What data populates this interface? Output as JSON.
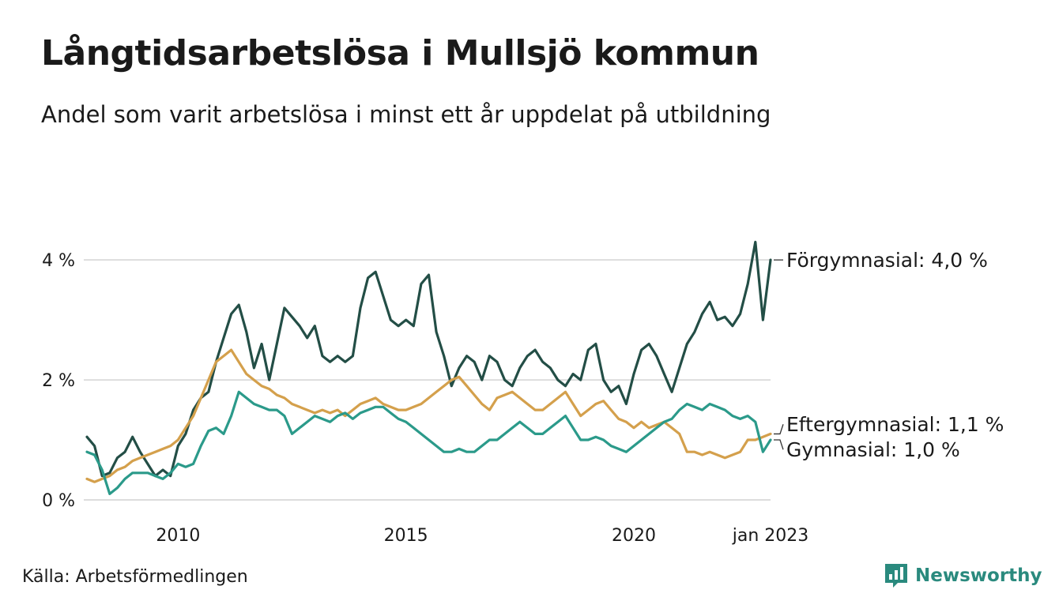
{
  "header": {
    "title": "Långtidsarbetslösa i Mullsjö kommun",
    "subtitle": "Andel som varit arbetslösa i minst ett år uppdelat på utbildning"
  },
  "footer": {
    "source": "Källa: Arbetsförmedlingen",
    "brand": "Newsworthy",
    "brand_color": "#2a8a7e"
  },
  "chart_data": {
    "type": "line",
    "x_start": "2008-01",
    "x_end": "2023-01",
    "x_ticks": [
      {
        "date": "2010-01",
        "label": "2010"
      },
      {
        "date": "2015-01",
        "label": "2015"
      },
      {
        "date": "2020-01",
        "label": "2020"
      },
      {
        "date": "2023-01",
        "label": "jan 2023"
      }
    ],
    "y_ticks": [
      {
        "value": 0,
        "label": "0 %"
      },
      {
        "value": 2,
        "label": "2 %"
      },
      {
        "value": 4,
        "label": "4 %"
      }
    ],
    "ylim": [
      0,
      5.7
    ],
    "grid": true,
    "series": [
      {
        "name": "Förgymnasial",
        "end_label": "Förgymnasial: 4,0 %",
        "color": "#234e46",
        "points": [
          [
            "2008-01",
            1.05
          ],
          [
            "2008-03",
            0.9
          ],
          [
            "2008-05",
            0.4
          ],
          [
            "2008-07",
            0.45
          ],
          [
            "2008-09",
            0.7
          ],
          [
            "2008-11",
            0.8
          ],
          [
            "2009-01",
            1.05
          ],
          [
            "2009-03",
            0.8
          ],
          [
            "2009-05",
            0.6
          ],
          [
            "2009-07",
            0.4
          ],
          [
            "2009-09",
            0.5
          ],
          [
            "2009-11",
            0.4
          ],
          [
            "2010-01",
            0.9
          ],
          [
            "2010-03",
            1.1
          ],
          [
            "2010-05",
            1.5
          ],
          [
            "2010-07",
            1.7
          ],
          [
            "2010-09",
            1.8
          ],
          [
            "2010-11",
            2.3
          ],
          [
            "2011-01",
            2.7
          ],
          [
            "2011-03",
            3.1
          ],
          [
            "2011-05",
            3.25
          ],
          [
            "2011-07",
            2.8
          ],
          [
            "2011-09",
            2.2
          ],
          [
            "2011-11",
            2.6
          ],
          [
            "2012-01",
            2.0
          ],
          [
            "2012-03",
            2.6
          ],
          [
            "2012-05",
            3.2
          ],
          [
            "2012-07",
            3.05
          ],
          [
            "2012-09",
            2.9
          ],
          [
            "2012-11",
            2.7
          ],
          [
            "2013-01",
            2.9
          ],
          [
            "2013-03",
            2.4
          ],
          [
            "2013-05",
            2.3
          ],
          [
            "2013-07",
            2.4
          ],
          [
            "2013-09",
            2.3
          ],
          [
            "2013-11",
            2.4
          ],
          [
            "2014-01",
            3.2
          ],
          [
            "2014-03",
            3.7
          ],
          [
            "2014-05",
            3.8
          ],
          [
            "2014-07",
            3.4
          ],
          [
            "2014-09",
            3.0
          ],
          [
            "2014-11",
            2.9
          ],
          [
            "2015-01",
            3.0
          ],
          [
            "2015-03",
            2.9
          ],
          [
            "2015-05",
            3.6
          ],
          [
            "2015-07",
            3.75
          ],
          [
            "2015-09",
            2.8
          ],
          [
            "2015-11",
            2.4
          ],
          [
            "2016-01",
            1.9
          ],
          [
            "2016-03",
            2.2
          ],
          [
            "2016-05",
            2.4
          ],
          [
            "2016-07",
            2.3
          ],
          [
            "2016-09",
            2.0
          ],
          [
            "2016-11",
            2.4
          ],
          [
            "2017-01",
            2.3
          ],
          [
            "2017-03",
            2.0
          ],
          [
            "2017-05",
            1.9
          ],
          [
            "2017-07",
            2.2
          ],
          [
            "2017-09",
            2.4
          ],
          [
            "2017-11",
            2.5
          ],
          [
            "2018-01",
            2.3
          ],
          [
            "2018-03",
            2.2
          ],
          [
            "2018-05",
            2.0
          ],
          [
            "2018-07",
            1.9
          ],
          [
            "2018-09",
            2.1
          ],
          [
            "2018-11",
            2.0
          ],
          [
            "2019-01",
            2.5
          ],
          [
            "2019-03",
            2.6
          ],
          [
            "2019-05",
            2.0
          ],
          [
            "2019-07",
            1.8
          ],
          [
            "2019-09",
            1.9
          ],
          [
            "2019-11",
            1.6
          ],
          [
            "2020-01",
            2.1
          ],
          [
            "2020-03",
            2.5
          ],
          [
            "2020-05",
            2.6
          ],
          [
            "2020-07",
            2.4
          ],
          [
            "2020-09",
            2.1
          ],
          [
            "2020-11",
            1.8
          ],
          [
            "2021-01",
            2.2
          ],
          [
            "2021-03",
            2.6
          ],
          [
            "2021-05",
            2.8
          ],
          [
            "2021-07",
            3.1
          ],
          [
            "2021-09",
            3.3
          ],
          [
            "2021-11",
            3.0
          ],
          [
            "2022-01",
            3.05
          ],
          [
            "2022-03",
            2.9
          ],
          [
            "2022-05",
            3.1
          ],
          [
            "2022-07",
            3.6
          ],
          [
            "2022-09",
            4.3
          ],
          [
            "2022-11",
            3.0
          ],
          [
            "2023-01",
            4.0
          ]
        ]
      },
      {
        "name": "Eftergymnasial",
        "end_label": "Eftergymnasial: 1,1 %",
        "color": "#d4a04c",
        "points": [
          [
            "2008-01",
            0.35
          ],
          [
            "2008-03",
            0.3
          ],
          [
            "2008-05",
            0.35
          ],
          [
            "2008-07",
            0.4
          ],
          [
            "2008-09",
            0.5
          ],
          [
            "2008-11",
            0.55
          ],
          [
            "2009-01",
            0.65
          ],
          [
            "2009-03",
            0.7
          ],
          [
            "2009-05",
            0.75
          ],
          [
            "2009-07",
            0.8
          ],
          [
            "2009-09",
            0.85
          ],
          [
            "2009-11",
            0.9
          ],
          [
            "2010-01",
            1.0
          ],
          [
            "2010-03",
            1.2
          ],
          [
            "2010-05",
            1.4
          ],
          [
            "2010-07",
            1.7
          ],
          [
            "2010-09",
            2.0
          ],
          [
            "2010-11",
            2.3
          ],
          [
            "2011-01",
            2.4
          ],
          [
            "2011-03",
            2.5
          ],
          [
            "2011-05",
            2.3
          ],
          [
            "2011-07",
            2.1
          ],
          [
            "2011-09",
            2.0
          ],
          [
            "2011-11",
            1.9
          ],
          [
            "2012-01",
            1.85
          ],
          [
            "2012-03",
            1.75
          ],
          [
            "2012-05",
            1.7
          ],
          [
            "2012-07",
            1.6
          ],
          [
            "2012-09",
            1.55
          ],
          [
            "2012-11",
            1.5
          ],
          [
            "2013-01",
            1.45
          ],
          [
            "2013-03",
            1.5
          ],
          [
            "2013-05",
            1.45
          ],
          [
            "2013-07",
            1.5
          ],
          [
            "2013-09",
            1.4
          ],
          [
            "2013-11",
            1.5
          ],
          [
            "2014-01",
            1.6
          ],
          [
            "2014-03",
            1.65
          ],
          [
            "2014-05",
            1.7
          ],
          [
            "2014-07",
            1.6
          ],
          [
            "2014-09",
            1.55
          ],
          [
            "2014-11",
            1.5
          ],
          [
            "2015-01",
            1.5
          ],
          [
            "2015-03",
            1.55
          ],
          [
            "2015-05",
            1.6
          ],
          [
            "2015-07",
            1.7
          ],
          [
            "2015-09",
            1.8
          ],
          [
            "2015-11",
            1.9
          ],
          [
            "2016-01",
            2.0
          ],
          [
            "2016-03",
            2.05
          ],
          [
            "2016-05",
            1.9
          ],
          [
            "2016-07",
            1.75
          ],
          [
            "2016-09",
            1.6
          ],
          [
            "2016-11",
            1.5
          ],
          [
            "2017-01",
            1.7
          ],
          [
            "2017-03",
            1.75
          ],
          [
            "2017-05",
            1.8
          ],
          [
            "2017-07",
            1.7
          ],
          [
            "2017-09",
            1.6
          ],
          [
            "2017-11",
            1.5
          ],
          [
            "2018-01",
            1.5
          ],
          [
            "2018-03",
            1.6
          ],
          [
            "2018-05",
            1.7
          ],
          [
            "2018-07",
            1.8
          ],
          [
            "2018-09",
            1.6
          ],
          [
            "2018-11",
            1.4
          ],
          [
            "2019-01",
            1.5
          ],
          [
            "2019-03",
            1.6
          ],
          [
            "2019-05",
            1.65
          ],
          [
            "2019-07",
            1.5
          ],
          [
            "2019-09",
            1.35
          ],
          [
            "2019-11",
            1.3
          ],
          [
            "2020-01",
            1.2
          ],
          [
            "2020-03",
            1.3
          ],
          [
            "2020-05",
            1.2
          ],
          [
            "2020-07",
            1.25
          ],
          [
            "2020-09",
            1.3
          ],
          [
            "2020-11",
            1.2
          ],
          [
            "2021-01",
            1.1
          ],
          [
            "2021-03",
            0.8
          ],
          [
            "2021-05",
            0.8
          ],
          [
            "2021-07",
            0.75
          ],
          [
            "2021-09",
            0.8
          ],
          [
            "2021-11",
            0.75
          ],
          [
            "2022-01",
            0.7
          ],
          [
            "2022-03",
            0.75
          ],
          [
            "2022-05",
            0.8
          ],
          [
            "2022-07",
            1.0
          ],
          [
            "2022-09",
            1.0
          ],
          [
            "2022-11",
            1.05
          ],
          [
            "2023-01",
            1.1
          ]
        ]
      },
      {
        "name": "Gymnasial",
        "end_label": "Gymnasial: 1,0 %",
        "color": "#2b9a8a",
        "points": [
          [
            "2008-01",
            0.8
          ],
          [
            "2008-03",
            0.75
          ],
          [
            "2008-05",
            0.5
          ],
          [
            "2008-07",
            0.1
          ],
          [
            "2008-09",
            0.2
          ],
          [
            "2008-11",
            0.35
          ],
          [
            "2009-01",
            0.45
          ],
          [
            "2009-03",
            0.45
          ],
          [
            "2009-05",
            0.45
          ],
          [
            "2009-07",
            0.4
          ],
          [
            "2009-09",
            0.35
          ],
          [
            "2009-11",
            0.45
          ],
          [
            "2010-01",
            0.6
          ],
          [
            "2010-03",
            0.55
          ],
          [
            "2010-05",
            0.6
          ],
          [
            "2010-07",
            0.9
          ],
          [
            "2010-09",
            1.15
          ],
          [
            "2010-11",
            1.2
          ],
          [
            "2011-01",
            1.1
          ],
          [
            "2011-03",
            1.4
          ],
          [
            "2011-05",
            1.8
          ],
          [
            "2011-07",
            1.7
          ],
          [
            "2011-09",
            1.6
          ],
          [
            "2011-11",
            1.55
          ],
          [
            "2012-01",
            1.5
          ],
          [
            "2012-03",
            1.5
          ],
          [
            "2012-05",
            1.4
          ],
          [
            "2012-07",
            1.1
          ],
          [
            "2012-09",
            1.2
          ],
          [
            "2012-11",
            1.3
          ],
          [
            "2013-01",
            1.4
          ],
          [
            "2013-03",
            1.35
          ],
          [
            "2013-05",
            1.3
          ],
          [
            "2013-07",
            1.4
          ],
          [
            "2013-09",
            1.45
          ],
          [
            "2013-11",
            1.35
          ],
          [
            "2014-01",
            1.45
          ],
          [
            "2014-03",
            1.5
          ],
          [
            "2014-05",
            1.55
          ],
          [
            "2014-07",
            1.55
          ],
          [
            "2014-09",
            1.45
          ],
          [
            "2014-11",
            1.35
          ],
          [
            "2015-01",
            1.3
          ],
          [
            "2015-03",
            1.2
          ],
          [
            "2015-05",
            1.1
          ],
          [
            "2015-07",
            1.0
          ],
          [
            "2015-09",
            0.9
          ],
          [
            "2015-11",
            0.8
          ],
          [
            "2016-01",
            0.8
          ],
          [
            "2016-03",
            0.85
          ],
          [
            "2016-05",
            0.8
          ],
          [
            "2016-07",
            0.8
          ],
          [
            "2016-09",
            0.9
          ],
          [
            "2016-11",
            1.0
          ],
          [
            "2017-01",
            1.0
          ],
          [
            "2017-03",
            1.1
          ],
          [
            "2017-05",
            1.2
          ],
          [
            "2017-07",
            1.3
          ],
          [
            "2017-09",
            1.2
          ],
          [
            "2017-11",
            1.1
          ],
          [
            "2018-01",
            1.1
          ],
          [
            "2018-03",
            1.2
          ],
          [
            "2018-05",
            1.3
          ],
          [
            "2018-07",
            1.4
          ],
          [
            "2018-09",
            1.2
          ],
          [
            "2018-11",
            1.0
          ],
          [
            "2019-01",
            1.0
          ],
          [
            "2019-03",
            1.05
          ],
          [
            "2019-05",
            1.0
          ],
          [
            "2019-07",
            0.9
          ],
          [
            "2019-09",
            0.85
          ],
          [
            "2019-11",
            0.8
          ],
          [
            "2020-01",
            0.9
          ],
          [
            "2020-03",
            1.0
          ],
          [
            "2020-05",
            1.1
          ],
          [
            "2020-07",
            1.2
          ],
          [
            "2020-09",
            1.3
          ],
          [
            "2020-11",
            1.35
          ],
          [
            "2021-01",
            1.5
          ],
          [
            "2021-03",
            1.6
          ],
          [
            "2021-05",
            1.55
          ],
          [
            "2021-07",
            1.5
          ],
          [
            "2021-09",
            1.6
          ],
          [
            "2021-11",
            1.55
          ],
          [
            "2022-01",
            1.5
          ],
          [
            "2022-03",
            1.4
          ],
          [
            "2022-05",
            1.35
          ],
          [
            "2022-07",
            1.4
          ],
          [
            "2022-09",
            1.3
          ],
          [
            "2022-11",
            0.8
          ],
          [
            "2023-01",
            1.0
          ]
        ]
      }
    ]
  }
}
